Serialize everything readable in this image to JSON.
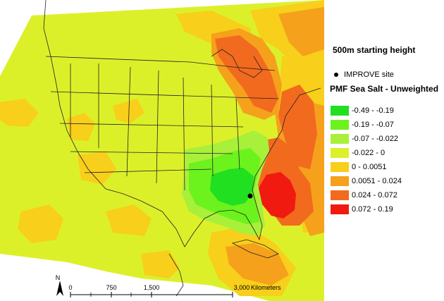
{
  "heading": "500m starting height",
  "site": {
    "label": "IMPROVE site",
    "icon": "site-dot-icon"
  },
  "legend": {
    "title": "PMF Sea Salt - Unweighted",
    "classes": [
      {
        "label": "-0.49 - -0.19",
        "color": "#20e020"
      },
      {
        "label": "-0.19 - -0.07",
        "color": "#6cf21c"
      },
      {
        "label": "-0.07 - -0.022",
        "color": "#a8f03a"
      },
      {
        "label": "-0.022 - 0",
        "color": "#dcf02a"
      },
      {
        "label": "0 - 0.0051",
        "color": "#f8cf1a"
      },
      {
        "label": "0.0051 - 0.024",
        "color": "#f5a11c"
      },
      {
        "label": "0.024 - 0.072",
        "color": "#f26a1e"
      },
      {
        "label": "0.072 - 0.19",
        "color": "#f01a10"
      }
    ]
  },
  "scale": {
    "ticks": [
      "0",
      "750",
      "1,500",
      "3,000"
    ],
    "unit": "Kilometers"
  },
  "north_arrow": {
    "label": "N",
    "icon": "north-arrow-icon"
  }
}
